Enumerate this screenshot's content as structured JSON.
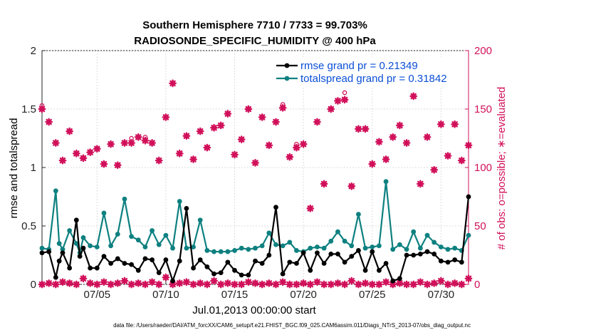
{
  "chart_data": {
    "type": "line",
    "title_line1": "Southern Hemisphere 7710 / 7733 = 99.703%",
    "title_line2": "RADIOSONDE_SPECIFIC_HUMIDITY @ 400 hPa",
    "xlabel": "Jul.01,2013 00:00:00 start",
    "ylabel_left": "rmse and totalspread",
    "ylabel_right": "# of obs: o=possible; ∗=evaluated",
    "footer": "data file: /Users/raeder/DAI/ATM_forcXX/CAM6_setup/f.e21.FHIST_BGC.f09_025.CAM6assim.011/Diags_NTrS_2013-07/obs_diag_output.nc",
    "xlim": [
      1,
      32
    ],
    "ylim_left": [
      0,
      2
    ],
    "ylim_right": [
      0,
      200
    ],
    "x_ticks": [
      5,
      10,
      15,
      20,
      25,
      30
    ],
    "x_tick_labels": [
      "07/05",
      "07/10",
      "07/15",
      "07/20",
      "07/25",
      "07/30"
    ],
    "y_ticks_left": [
      0,
      0.5,
      1,
      1.5,
      2
    ],
    "y_tick_labels_left": [
      "0",
      "0.5",
      "1",
      "1.5",
      "2"
    ],
    "y_ticks_right": [
      0,
      50,
      100,
      150,
      200
    ],
    "y_tick_labels_right": [
      "0",
      "50",
      "100",
      "150",
      "200"
    ],
    "grid": true,
    "legend_position": "top-right",
    "colors": {
      "rmse": "#000000",
      "spread": "#0e8080",
      "obs": "#d1105a",
      "legend_text": "#0a4fd6"
    },
    "series": [
      {
        "name": "rmse grand pr = 0.21349",
        "axis": "left",
        "x": [
          1.0,
          1.5,
          2.0,
          2.25,
          2.5,
          3.0,
          3.5,
          3.75,
          4.0,
          4.5,
          5.0,
          5.5,
          6.0,
          6.5,
          7.0,
          7.5,
          8.0,
          8.5,
          9.0,
          9.5,
          10.0,
          10.5,
          11.0,
          11.5,
          12.0,
          12.5,
          13.0,
          13.5,
          14.0,
          14.5,
          15.0,
          15.5,
          16.0,
          16.5,
          17.0,
          17.5,
          18.0,
          18.5,
          19.0,
          19.5,
          20.0,
          20.5,
          21.0,
          21.5,
          22.0,
          22.5,
          23.0,
          23.5,
          24.0,
          24.5,
          25.0,
          25.5,
          26.0,
          26.5,
          27.0,
          27.5,
          28.0,
          28.5,
          29.0,
          29.5,
          30.0,
          30.5,
          31.0,
          31.5,
          32.0
        ],
        "values": [
          0.27,
          0.28,
          0.06,
          0.2,
          0.27,
          0.14,
          0.55,
          0.24,
          0.31,
          0.14,
          0.14,
          0.24,
          0.18,
          0.22,
          0.18,
          0.17,
          0.12,
          0.22,
          0.21,
          0.1,
          0.21,
          0.03,
          0.2,
          0.65,
          0.14,
          0.21,
          0.15,
          0.09,
          0.1,
          0.19,
          0.12,
          0.08,
          0.08,
          0.2,
          0.18,
          0.25,
          0.66,
          0.09,
          0.19,
          0.18,
          0.27,
          0.12,
          0.27,
          0.18,
          0.26,
          0.26,
          0.19,
          0.24,
          0.29,
          0.12,
          0.28,
          0.12,
          0.18,
          0.03,
          0.05,
          0.25,
          0.25,
          0.26,
          0.28,
          0.26,
          0.2,
          0.19,
          0.21,
          0.19,
          0.75
        ]
      },
      {
        "name": "totalspread grand pr = 0.31842",
        "axis": "left",
        "x": [
          1.0,
          1.5,
          2.0,
          2.25,
          2.5,
          3.0,
          3.5,
          3.75,
          4.0,
          4.5,
          5.0,
          5.5,
          6.0,
          6.5,
          7.0,
          7.5,
          8.0,
          8.5,
          9.0,
          9.5,
          10.0,
          10.5,
          11.0,
          11.5,
          12.0,
          12.5,
          13.0,
          13.5,
          14.0,
          14.5,
          15.0,
          15.5,
          16.0,
          16.5,
          17.0,
          17.5,
          18.0,
          18.5,
          19.0,
          19.5,
          20.0,
          20.5,
          21.0,
          21.5,
          22.0,
          22.5,
          23.0,
          23.5,
          24.0,
          24.5,
          25.0,
          25.5,
          26.0,
          26.5,
          27.0,
          27.5,
          28.0,
          28.5,
          29.0,
          29.5,
          30.0,
          30.5,
          31.0,
          31.5,
          32.0
        ],
        "values": [
          0.31,
          0.3,
          0.8,
          0.35,
          0.3,
          0.46,
          0.35,
          0.27,
          0.4,
          0.33,
          0.32,
          0.61,
          0.33,
          0.43,
          0.73,
          0.41,
          0.38,
          0.32,
          0.46,
          0.34,
          0.42,
          0.31,
          0.71,
          0.31,
          0.32,
          0.55,
          0.29,
          0.28,
          0.28,
          0.28,
          0.29,
          0.31,
          0.3,
          0.31,
          0.33,
          0.44,
          0.34,
          0.33,
          0.36,
          0.29,
          0.28,
          0.31,
          0.32,
          0.31,
          0.37,
          0.45,
          0.37,
          0.33,
          0.6,
          0.31,
          0.32,
          0.33,
          0.88,
          0.3,
          0.34,
          0.3,
          0.45,
          0.31,
          0.42,
          0.36,
          0.32,
          0.3,
          0.31,
          0.29,
          0.42
        ]
      },
      {
        "name": "obs possible",
        "axis": "right",
        "marker": "circle",
        "x": [
          1.0,
          1.5,
          2.0,
          2.5,
          3.0,
          3.5,
          4.0,
          4.5,
          5.0,
          5.5,
          6.0,
          6.5,
          7.0,
          7.5,
          8.0,
          8.5,
          9.0,
          9.5,
          10.0,
          10.5,
          11.0,
          11.5,
          12.0,
          12.5,
          13.0,
          13.5,
          14.0,
          14.5,
          15.0,
          15.5,
          16.0,
          16.5,
          17.0,
          17.5,
          18.0,
          18.5,
          19.0,
          19.5,
          20.0,
          20.5,
          21.0,
          21.5,
          22.0,
          22.5,
          23.0,
          23.5,
          24.0,
          24.5,
          25.0,
          25.5,
          26.0,
          26.5,
          27.0,
          27.5,
          28.0,
          28.5,
          29.0,
          29.5,
          30.0,
          30.5,
          31.0,
          31.5,
          32.0
        ],
        "values": [
          153,
          139,
          121,
          106,
          131,
          112,
          108,
          113,
          116,
          103,
          120,
          102,
          121,
          125,
          126,
          126,
          121,
          106,
          143,
          172,
          112,
          127,
          107,
          131,
          117,
          134,
          136,
          146,
          111,
          124,
          150,
          104,
          143,
          119,
          139,
          154,
          109,
          120,
          120,
          65,
          139,
          86,
          150,
          157,
          164,
          84,
          133,
          133,
          103,
          122,
          107,
          126,
          136,
          121,
          161,
          86,
          126,
          98,
          137,
          110,
          137,
          106,
          119
        ]
      },
      {
        "name": "obs evaluated",
        "axis": "right",
        "marker": "star",
        "x": [
          1.0,
          1.5,
          2.0,
          2.5,
          3.0,
          3.5,
          4.0,
          4.5,
          5.0,
          5.5,
          6.0,
          6.5,
          7.0,
          7.5,
          8.0,
          8.5,
          9.0,
          9.5,
          10.0,
          10.5,
          11.0,
          11.5,
          12.0,
          12.5,
          13.0,
          13.5,
          14.0,
          14.5,
          15.0,
          15.5,
          16.0,
          16.5,
          17.0,
          17.5,
          18.0,
          18.5,
          19.0,
          19.5,
          20.0,
          20.5,
          21.0,
          21.5,
          22.0,
          22.5,
          23.0,
          23.5,
          24.0,
          24.5,
          25.0,
          25.5,
          26.0,
          26.5,
          27.0,
          27.5,
          28.0,
          28.5,
          29.0,
          29.5,
          30.0,
          30.5,
          31.0,
          31.5,
          32.0
        ],
        "values": [
          150,
          139,
          121,
          106,
          131,
          112,
          108,
          113,
          116,
          103,
          120,
          102,
          121,
          121,
          126,
          123,
          121,
          106,
          143,
          172,
          112,
          127,
          107,
          131,
          117,
          134,
          136,
          146,
          111,
          124,
          150,
          104,
          143,
          119,
          139,
          151,
          109,
          117,
          120,
          65,
          139,
          86,
          150,
          157,
          158,
          84,
          133,
          133,
          103,
          122,
          107,
          126,
          136,
          121,
          161,
          86,
          126,
          98,
          137,
          110,
          137,
          106,
          119
        ]
      },
      {
        "name": "obs near zero",
        "axis": "right",
        "marker": "star",
        "x": [
          1.0,
          1.5,
          2.0,
          2.5,
          3.0,
          3.5,
          4.0,
          4.5,
          5.0,
          5.5,
          6.0,
          6.5,
          7.0,
          7.5,
          8.0,
          8.5,
          9.0,
          9.5,
          10.0,
          10.5,
          11.0,
          11.5,
          12.0,
          12.5,
          13.0,
          13.5,
          14.0,
          14.5,
          15.0,
          15.5,
          16.0,
          16.5,
          17.0,
          17.5,
          18.0,
          18.5,
          19.0,
          19.5,
          20.0,
          20.5,
          21.0,
          21.5,
          22.0,
          22.5,
          23.0,
          23.5,
          24.0,
          24.5,
          25.0,
          25.5,
          26.0,
          26.5,
          27.0,
          27.5,
          28.0,
          28.5,
          29.0,
          29.5,
          30.0,
          30.5,
          31.0,
          31.5,
          32.0
        ],
        "values": [
          0,
          1,
          0,
          2,
          1,
          0,
          5,
          1,
          0,
          2,
          0,
          1,
          3,
          0,
          1,
          0,
          2,
          0,
          6,
          0,
          1,
          2,
          0,
          1,
          0,
          3,
          0,
          1,
          0,
          0,
          2,
          1,
          0,
          1,
          0,
          2,
          0,
          0,
          1,
          0,
          2,
          0,
          0,
          1,
          0,
          3,
          0,
          1,
          0,
          0,
          2,
          0,
          1,
          0,
          0,
          2,
          0,
          1,
          3,
          0,
          1,
          0,
          5
        ]
      }
    ]
  }
}
